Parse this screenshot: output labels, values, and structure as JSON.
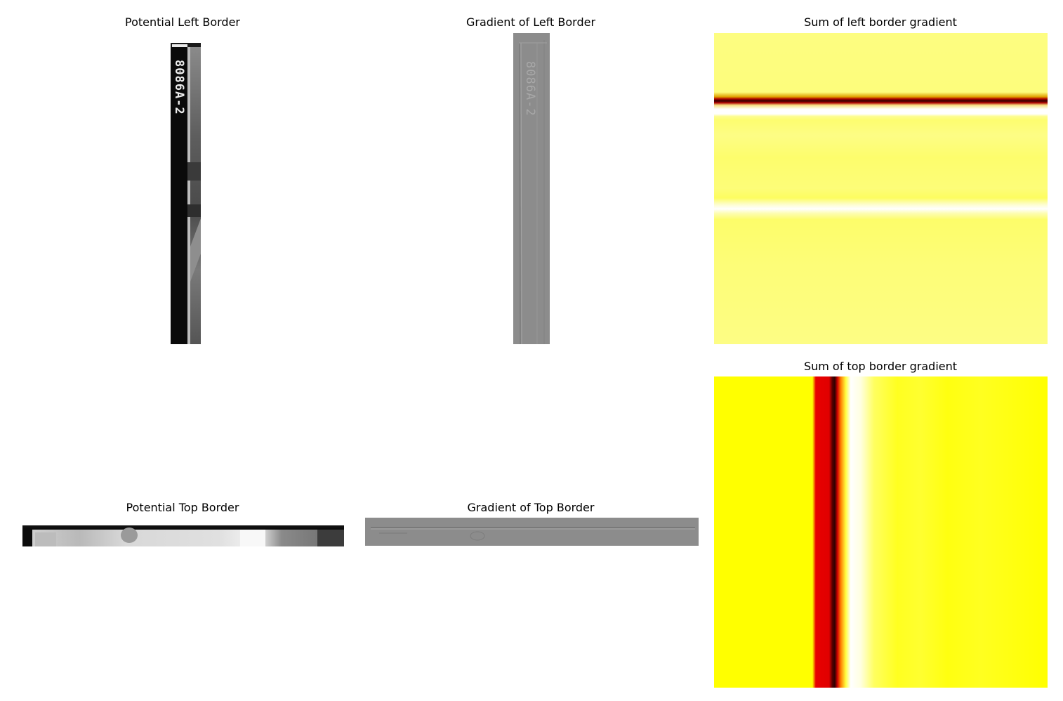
{
  "panels": {
    "left_border": {
      "title": "Potential Left Border",
      "film_label": "8086A-2"
    },
    "left_gradient": {
      "title": "Gradient of Left Border",
      "film_label": "8086A-2"
    },
    "left_sum": {
      "title": "Sum of left border gradient"
    },
    "top_border": {
      "title": "Potential Top Border"
    },
    "top_gradient": {
      "title": "Gradient of Top Border"
    },
    "top_sum": {
      "title": "Sum of top border gradient"
    }
  },
  "colors": {
    "background": "#ffffff",
    "heatmap_pale": "#fdfd80",
    "heatmap_yellow": "#ffff00",
    "heatmap_red": "#e00000",
    "heatmap_dark": "#3a0000",
    "gradient_gray": "#8c8c8c"
  }
}
